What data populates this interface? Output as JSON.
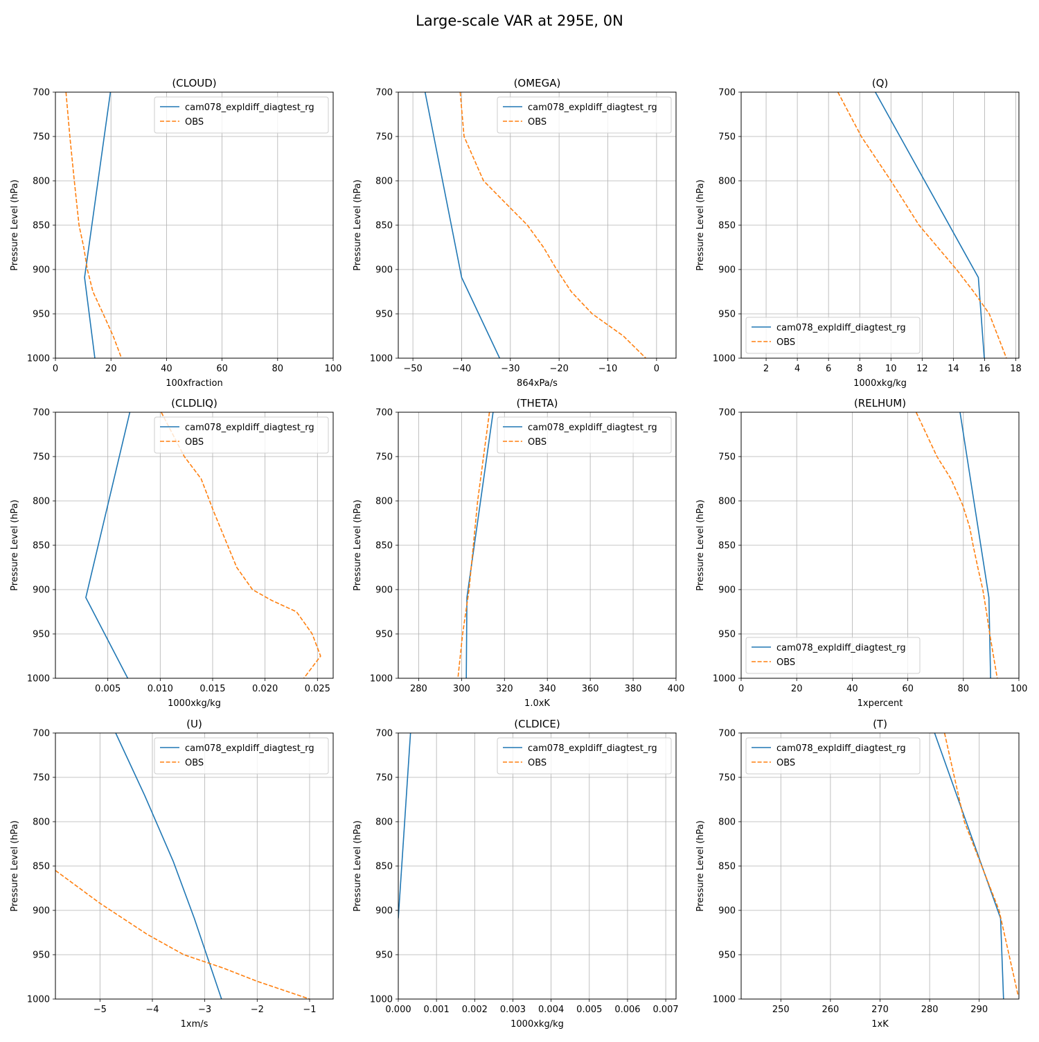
{
  "figure": {
    "title": "Large-scale VAR at 295E, 0N"
  },
  "chart_data": [
    {
      "type": "line",
      "title": "(CLOUD)",
      "xlabel": "100xfraction",
      "ylabel": "Pressure Level (hPa)",
      "xlim": [
        0,
        100
      ],
      "ylim": [
        1000,
        700
      ],
      "xticks": [
        0,
        20,
        40,
        60,
        80,
        100
      ],
      "xtick_labels": [
        "0",
        "20",
        "40",
        "60",
        "80",
        "100"
      ],
      "yticks": [
        700,
        750,
        800,
        850,
        900,
        950,
        1000
      ],
      "grid": true,
      "legend": "upper right",
      "series": [
        {
          "name": "cam078_expldiff_diagtest_rg",
          "style": "solid",
          "color": "#1f77b4",
          "x": [
            19.8,
            10.5,
            14.2
          ],
          "y": [
            700,
            909,
            1000
          ]
        },
        {
          "name": "OBS",
          "style": "dashed",
          "color": "#ff7f0e",
          "x": [
            3.8,
            5.2,
            6.8,
            8.5,
            10.2,
            11.5,
            13.5,
            17.2,
            20.8,
            23.8
          ],
          "y": [
            700,
            750,
            800,
            850,
            875,
            900,
            925,
            950,
            975,
            1000
          ]
        }
      ]
    },
    {
      "type": "line",
      "title": "(OMEGA)",
      "xlabel": "864xPa/s",
      "ylabel": "Pressure Level (hPa)",
      "xlim": [
        -53,
        4
      ],
      "ylim": [
        1000,
        700
      ],
      "xticks": [
        -50,
        -40,
        -30,
        -20,
        -10,
        0
      ],
      "xtick_labels": [
        "−50",
        "−40",
        "−30",
        "−20",
        "−10",
        "0"
      ],
      "yticks": [
        700,
        750,
        800,
        850,
        900,
        950,
        1000
      ],
      "grid": true,
      "legend": "upper right",
      "series": [
        {
          "name": "cam078_expldiff_diagtest_rg",
          "style": "solid",
          "color": "#1f77b4",
          "x": [
            -47.5,
            -40.0,
            -32.2
          ],
          "y": [
            700,
            909,
            1000
          ]
        },
        {
          "name": "OBS",
          "style": "dashed",
          "color": "#ff7f0e",
          "x": [
            -40.3,
            -39.5,
            -35.5,
            -31.0,
            -26.5,
            -23.2,
            -20.5,
            -17.5,
            -13.2,
            -6.8,
            -2.2
          ],
          "y": [
            700,
            750,
            800,
            825,
            850,
            875,
            900,
            925,
            950,
            975,
            1000
          ]
        }
      ]
    },
    {
      "type": "line",
      "title": "(Q)",
      "xlabel": "1000xkg/kg",
      "ylabel": "Pressure Level (hPa)",
      "xlim": [
        0.4,
        18.2
      ],
      "ylim": [
        1000,
        700
      ],
      "xticks": [
        2,
        4,
        6,
        8,
        10,
        12,
        14,
        16,
        18
      ],
      "xtick_labels": [
        "2",
        "4",
        "6",
        "8",
        "10",
        "12",
        "14",
        "16",
        "18"
      ],
      "yticks": [
        700,
        750,
        800,
        850,
        900,
        950,
        1000
      ],
      "grid": true,
      "legend": "lower left",
      "series": [
        {
          "name": "cam078_expldiff_diagtest_rg",
          "style": "solid",
          "color": "#1f77b4",
          "x": [
            9.0,
            15.6,
            15.98
          ],
          "y": [
            700,
            909,
            1000
          ]
        },
        {
          "name": "OBS",
          "style": "dashed",
          "color": "#ff7f0e",
          "x": [
            6.6,
            8.1,
            10.0,
            11.8,
            13.0,
            14.2,
            15.3,
            16.3,
            17.4
          ],
          "y": [
            700,
            750,
            800,
            850,
            875,
            900,
            925,
            950,
            1000
          ]
        }
      ]
    },
    {
      "type": "line",
      "title": "(CLDLIQ)",
      "xlabel": "1000xkg/kg",
      "ylabel": "Pressure Level (hPa)",
      "xlim": [
        0,
        0.0265
      ],
      "ylim": [
        1000,
        700
      ],
      "xticks": [
        0.005,
        0.01,
        0.015,
        0.02,
        0.025
      ],
      "xtick_labels": [
        "0.005",
        "0.010",
        "0.015",
        "0.020",
        "0.025"
      ],
      "yticks": [
        700,
        750,
        800,
        850,
        900,
        950,
        1000
      ],
      "grid": true,
      "legend": "upper right",
      "series": [
        {
          "name": "cam078_expldiff_diagtest_rg",
          "style": "solid",
          "color": "#1f77b4",
          "x": [
            0.0071,
            0.0029,
            0.0069
          ],
          "y": [
            700,
            909,
            1000
          ]
        },
        {
          "name": "OBS",
          "style": "dashed",
          "color": "#ff7f0e",
          "x": [
            0.0101,
            0.0123,
            0.0139,
            0.0151,
            0.0173,
            0.0188,
            0.0206,
            0.023,
            0.0245,
            0.0253,
            0.0237
          ],
          "y": [
            700,
            750,
            775,
            812,
            875,
            900,
            912,
            925,
            950,
            975,
            1000
          ]
        }
      ]
    },
    {
      "type": "line",
      "title": "(THETA)",
      "xlabel": "1.0xK",
      "ylabel": "Pressure Level (hPa)",
      "xlim": [
        270.5,
        400
      ],
      "ylim": [
        1000,
        700
      ],
      "xticks": [
        280,
        300,
        320,
        340,
        360,
        380,
        400
      ],
      "xtick_labels": [
        "280",
        "300",
        "320",
        "340",
        "360",
        "380",
        "400"
      ],
      "yticks": [
        700,
        750,
        800,
        850,
        900,
        950,
        1000
      ],
      "grid": true,
      "legend": "upper right",
      "series": [
        {
          "name": "cam078_expldiff_diagtest_rg",
          "style": "solid",
          "color": "#1f77b4",
          "x": [
            314.7,
            302.5,
            302.2
          ],
          "y": [
            700,
            909,
            1000
          ]
        },
        {
          "name": "OBS",
          "style": "dashed",
          "color": "#ff7f0e",
          "x": [
            313.0,
            307.5,
            303.5,
            300.5,
            298.3
          ],
          "y": [
            700,
            800,
            900,
            950,
            1000
          ]
        }
      ]
    },
    {
      "type": "line",
      "title": "(RELHUM)",
      "xlabel": "1xpercent",
      "ylabel": "Pressure Level (hPa)",
      "xlim": [
        0,
        100
      ],
      "ylim": [
        1000,
        700
      ],
      "xticks": [
        0,
        20,
        40,
        60,
        80,
        100
      ],
      "xtick_labels": [
        "0",
        "20",
        "40",
        "60",
        "80",
        "100"
      ],
      "yticks": [
        700,
        750,
        800,
        850,
        900,
        950,
        1000
      ],
      "grid": true,
      "legend": "lower left",
      "series": [
        {
          "name": "cam078_expldiff_diagtest_rg",
          "style": "solid",
          "color": "#1f77b4",
          "x": [
            78.8,
            89.2,
            89.8
          ],
          "y": [
            700,
            909,
            1000
          ]
        },
        {
          "name": "OBS",
          "style": "dashed",
          "color": "#ff7f0e",
          "x": [
            63.0,
            70.5,
            75.5,
            79.8,
            82.3,
            83.5,
            85.2,
            87.0,
            88.3,
            89.5,
            92.2
          ],
          "y": [
            700,
            750,
            775,
            805,
            830,
            850,
            875,
            900,
            925,
            950,
            1000
          ]
        }
      ]
    },
    {
      "type": "line",
      "title": "(U)",
      "xlabel": "1xm/s",
      "ylabel": "Pressure Level (hPa)",
      "xlim": [
        -5.85,
        -0.55
      ],
      "ylim": [
        1000,
        700
      ],
      "xticks": [
        -5,
        -4,
        -3,
        -2,
        -1
      ],
      "xtick_labels": [
        "−5",
        "−4",
        "−3",
        "−2",
        "−1"
      ],
      "yticks": [
        700,
        750,
        800,
        850,
        900,
        950,
        1000
      ],
      "grid": true,
      "legend": "upper right",
      "series": [
        {
          "name": "cam078_expldiff_diagtest_rg",
          "style": "solid",
          "color": "#1f77b4",
          "x": [
            -4.7,
            -4.15,
            -3.6,
            -3.2,
            -2.68
          ],
          "y": [
            700,
            770,
            845,
            909,
            1000
          ]
        },
        {
          "name": "OBS",
          "style": "dashed",
          "color": "#ff7f0e",
          "x": [
            -5.85,
            -5.0,
            -4.1,
            -3.4,
            -2.65,
            -2.0,
            -1.0
          ],
          "y": [
            855,
            892,
            927,
            950,
            965,
            980,
            1000
          ]
        }
      ]
    },
    {
      "type": "line",
      "title": "(CLDICE)",
      "xlabel": "1000xkg/kg",
      "ylabel": "Pressure Level (hPa)",
      "xlim": [
        0,
        0.00727
      ],
      "ylim": [
        1000,
        700
      ],
      "xticks": [
        0,
        0.001,
        0.002,
        0.003,
        0.004,
        0.005,
        0.006,
        0.007
      ],
      "xtick_labels": [
        "0.000",
        "0.001",
        "0.002",
        "0.003",
        "0.004",
        "0.005",
        "0.006",
        "0.007"
      ],
      "yticks": [
        700,
        750,
        800,
        850,
        900,
        950,
        1000
      ],
      "grid": true,
      "legend": "upper right",
      "series": [
        {
          "name": "cam078_expldiff_diagtest_rg",
          "style": "solid",
          "color": "#1f77b4",
          "x": [
            0.00032,
            0.0
          ],
          "y": [
            700,
            909
          ]
        },
        {
          "name": "OBS",
          "style": "dashed",
          "color": "#ff7f0e",
          "x": [],
          "y": []
        }
      ]
    },
    {
      "type": "line",
      "title": "(T)",
      "xlabel": "1xK",
      "ylabel": "Pressure Level (hPa)",
      "xlim": [
        242,
        298
      ],
      "ylim": [
        1000,
        700
      ],
      "xticks": [
        250,
        260,
        270,
        280,
        290
      ],
      "xtick_labels": [
        "250",
        "260",
        "270",
        "280",
        "290"
      ],
      "yticks": [
        700,
        750,
        800,
        850,
        900,
        950,
        1000
      ],
      "grid": true,
      "legend": "upper left",
      "series": [
        {
          "name": "cam078_expldiff_diagtest_rg",
          "style": "solid",
          "color": "#1f77b4",
          "x": [
            281.0,
            294.3,
            294.9
          ],
          "y": [
            700,
            909,
            1000
          ]
        },
        {
          "name": "OBS",
          "style": "dashed",
          "color": "#ff7f0e",
          "x": [
            283.0,
            287.0,
            290.5,
            294.0,
            297.8
          ],
          "y": [
            700,
            800,
            850,
            900,
            995
          ]
        }
      ]
    }
  ]
}
